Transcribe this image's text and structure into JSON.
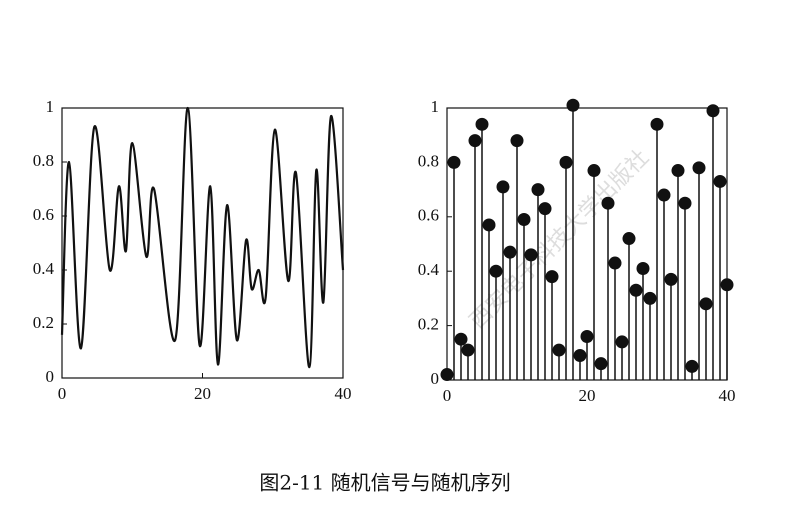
{
  "chart_data": [
    {
      "type": "line",
      "color": "#111",
      "x": [
        0,
        1,
        2.7,
        4.6,
        6.8,
        8.1,
        9.1,
        10,
        12,
        13.1,
        16.1,
        17.9,
        19.6,
        21.1,
        22.2,
        23.5,
        24.9,
        26.2,
        27,
        28,
        29,
        30.3,
        32.2,
        33.3,
        35.2,
        36.2,
        37.2,
        38.3,
        40
      ],
      "values": [
        0.16,
        0.8,
        0.11,
        0.93,
        0.4,
        0.71,
        0.47,
        0.87,
        0.45,
        0.7,
        0.14,
        1.0,
        0.12,
        0.71,
        0.05,
        0.64,
        0.14,
        0.51,
        0.33,
        0.4,
        0.3,
        0.92,
        0.36,
        0.76,
        0.04,
        0.77,
        0.28,
        0.97,
        0.4
      ],
      "xlim": [
        0,
        40
      ],
      "xticks": [
        0,
        20,
        40
      ],
      "ylim": [
        0,
        1
      ],
      "yticks": [
        0,
        0.2,
        0.4,
        0.6,
        0.8,
        1
      ]
    },
    {
      "type": "stem",
      "color": "#111",
      "x": [
        0,
        1,
        2,
        3,
        4,
        5,
        6,
        7,
        8,
        9,
        10,
        11,
        12,
        13,
        14,
        15,
        16,
        17,
        18,
        19,
        20,
        21,
        22,
        23,
        24,
        25,
        26,
        27,
        28,
        29,
        30,
        31,
        32,
        33,
        34,
        35,
        36,
        37,
        38,
        39,
        40
      ],
      "values": [
        0.02,
        0.8,
        0.15,
        0.11,
        0.88,
        0.94,
        0.57,
        0.4,
        0.71,
        0.47,
        0.88,
        0.59,
        0.46,
        0.7,
        0.63,
        0.38,
        0.11,
        0.8,
        1.01,
        0.09,
        0.16,
        0.77,
        0.06,
        0.65,
        0.43,
        0.14,
        0.52,
        0.33,
        0.41,
        0.3,
        0.94,
        0.68,
        0.37,
        0.77,
        0.65,
        0.05,
        0.78,
        0.28,
        0.99,
        0.73,
        0.35
      ],
      "xlim": [
        0,
        40
      ],
      "xticks": [
        0,
        20,
        40
      ],
      "ylim": [
        0,
        1
      ],
      "yticks": [
        0,
        0.2,
        0.4,
        0.6,
        0.8,
        1
      ]
    }
  ],
  "caption": "图2-11 随机信号与随机序列",
  "watermark": "西安电子科技大学出版社"
}
